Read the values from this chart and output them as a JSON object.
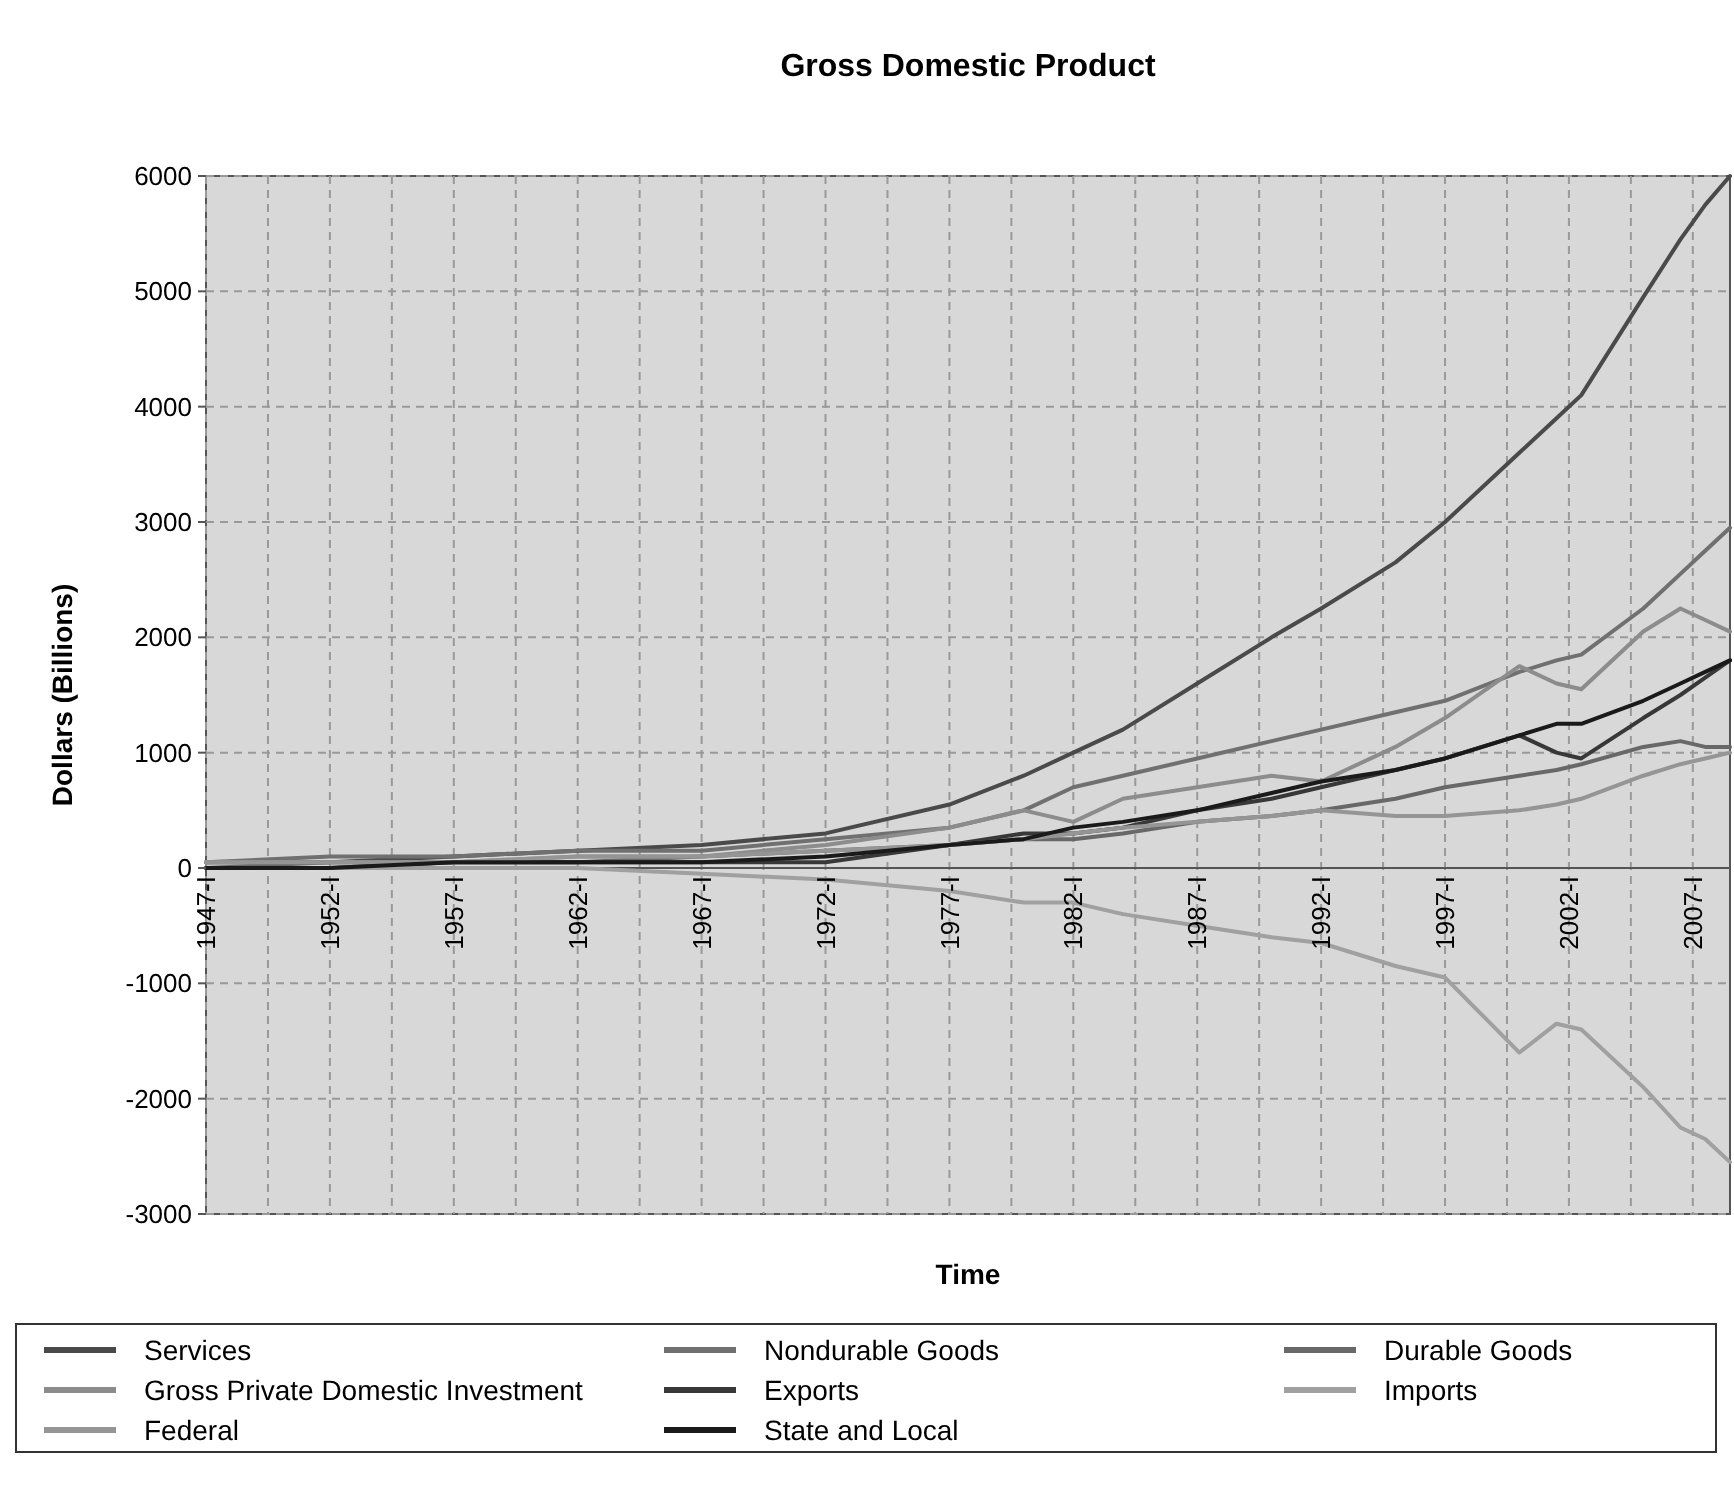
{
  "chart_data": {
    "type": "line",
    "title": "Gross Domestic Product",
    "xlabel": "Time",
    "ylabel": "Dollars (Billions)",
    "x": [
      1947,
      1952,
      1957,
      1962,
      1967,
      1972,
      1977,
      1980,
      1982,
      1984,
      1987,
      1990,
      1992,
      1995,
      1997,
      2000,
      2001.5,
      2002.5,
      2005,
      2006.5,
      2007.5,
      2008.5
    ],
    "xlim": [
      1947,
      2008.5
    ],
    "xticks": [
      {
        "value": 1947,
        "label": "1947-I"
      },
      {
        "value": 1949.5,
        "label": null
      },
      {
        "value": 1952,
        "label": "1952-I"
      },
      {
        "value": 1954.5,
        "label": null
      },
      {
        "value": 1957,
        "label": "1957-I"
      },
      {
        "value": 1959.5,
        "label": null
      },
      {
        "value": 1962,
        "label": "1962-I"
      },
      {
        "value": 1964.5,
        "label": null
      },
      {
        "value": 1967,
        "label": "1967-I"
      },
      {
        "value": 1969.5,
        "label": null
      },
      {
        "value": 1972,
        "label": "1972-I"
      },
      {
        "value": 1974.5,
        "label": null
      },
      {
        "value": 1977,
        "label": "1977-I"
      },
      {
        "value": 1979.5,
        "label": null
      },
      {
        "value": 1982,
        "label": "1982-I"
      },
      {
        "value": 1984.5,
        "label": null
      },
      {
        "value": 1987,
        "label": "1987-I"
      },
      {
        "value": 1989.5,
        "label": null
      },
      {
        "value": 1992,
        "label": "1992-I"
      },
      {
        "value": 1994.5,
        "label": null
      },
      {
        "value": 1997,
        "label": "1997-I"
      },
      {
        "value": 1999.5,
        "label": null
      },
      {
        "value": 2002,
        "label": "2002-I"
      },
      {
        "value": 2004.5,
        "label": null
      },
      {
        "value": 2007,
        "label": "2007-I"
      }
    ],
    "ylim": [
      -3000,
      6000
    ],
    "yticks": [
      -3000,
      -2000,
      -1000,
      0,
      1000,
      2000,
      3000,
      4000,
      5000,
      6000
    ],
    "grid": true,
    "legend": "bottom",
    "line_style": "solid",
    "series": [
      {
        "name": "Services",
        "color": "#4a4a4a",
        "values": [
          50,
          50,
          100,
          150,
          200,
          300,
          550,
          800,
          1000,
          1200,
          1600,
          2000,
          2250,
          2650,
          3000,
          3600,
          3900,
          4100,
          4950,
          5450,
          5750,
          6000
        ]
      },
      {
        "name": "Nondurable Goods",
        "color": "#707070",
        "values": [
          50,
          100,
          100,
          150,
          150,
          250,
          350,
          500,
          700,
          800,
          950,
          1100,
          1200,
          1350,
          1450,
          1700,
          1800,
          1850,
          2250,
          2550,
          2750,
          2950
        ]
      },
      {
        "name": "Durable Goods",
        "color": "#686868",
        "values": [
          0,
          50,
          50,
          50,
          100,
          150,
          200,
          250,
          250,
          300,
          400,
          450,
          500,
          600,
          700,
          800,
          850,
          900,
          1050,
          1100,
          1050,
          1050
        ]
      },
      {
        "name": "Gross Private Domestic Investment",
        "color": "#8c8c8c",
        "values": [
          50,
          50,
          50,
          100,
          100,
          200,
          350,
          500,
          400,
          600,
          700,
          800,
          750,
          1050,
          1300,
          1750,
          1600,
          1550,
          2050,
          2250,
          2150,
          2050
        ]
      },
      {
        "name": "Exports",
        "color": "#383838",
        "values": [
          0,
          0,
          50,
          50,
          50,
          50,
          200,
          300,
          300,
          350,
          500,
          600,
          700,
          850,
          950,
          1150,
          1000,
          950,
          1300,
          1500,
          1650,
          1800
        ]
      },
      {
        "name": "Imports",
        "color": "#a0a0a0",
        "values": [
          0,
          0,
          0,
          0,
          -50,
          -100,
          -200,
          -300,
          -300,
          -400,
          -500,
          -600,
          -650,
          -850,
          -950,
          -1600,
          -1350,
          -1400,
          -1900,
          -2250,
          -2350,
          -2550
        ]
      },
      {
        "name": "Federal",
        "color": "#959595",
        "values": [
          50,
          50,
          50,
          100,
          100,
          150,
          200,
          250,
          300,
          350,
          400,
          450,
          500,
          450,
          450,
          500,
          550,
          600,
          800,
          900,
          950,
          1000
        ]
      },
      {
        "name": "State and Local",
        "color": "#1a1a1a",
        "values": [
          0,
          0,
          50,
          50,
          50,
          100,
          200,
          250,
          350,
          400,
          500,
          650,
          750,
          850,
          950,
          1150,
          1250,
          1250,
          1450,
          1600,
          1700,
          1800
        ]
      }
    ]
  }
}
